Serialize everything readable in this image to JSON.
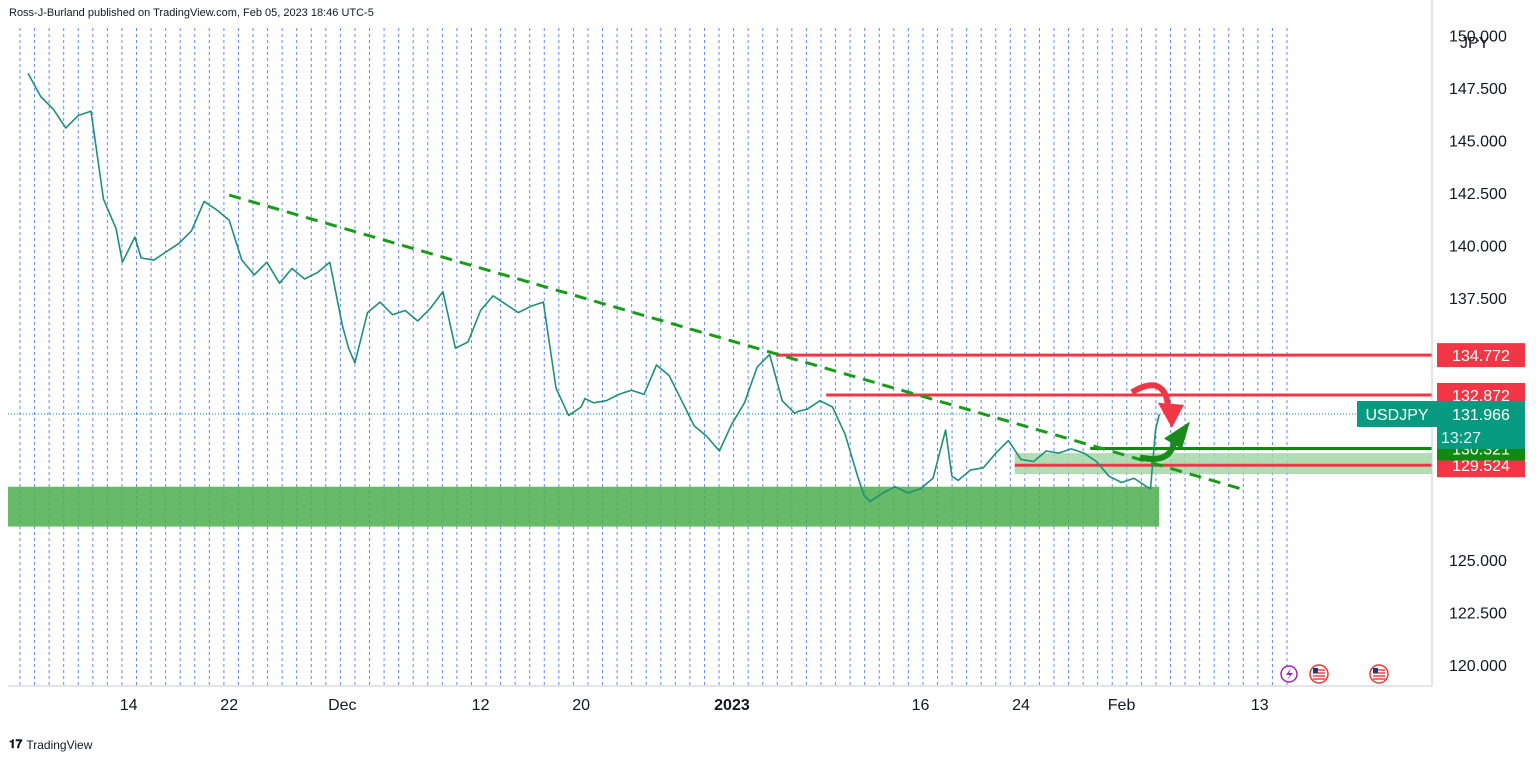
{
  "header": {
    "publisher": "Ross-J-Burland published on TradingView.com, Feb 05, 2023 18:46 UTC-5"
  },
  "footer": {
    "brand": "TradingView"
  },
  "chart_data": {
    "type": "line",
    "symbol": "USDJPY",
    "currency": "JPY",
    "countdown": "13:27",
    "grid": "vertical-dotted",
    "ylim": [
      119.0,
      151.7
    ],
    "xlim": [
      -1.6,
      111.7
    ],
    "y_ticks": [
      "150.000",
      "147.500",
      "145.000",
      "142.500",
      "140.000",
      "137.500",
      "125.000",
      "122.500",
      "120.000"
    ],
    "y_tick_values": [
      150.0,
      147.5,
      145.0,
      142.5,
      140.0,
      137.5,
      125.0,
      122.5,
      120.0
    ],
    "x_ticks": [
      {
        "label": "14",
        "x": 8,
        "bold": false
      },
      {
        "label": "22",
        "x": 16,
        "bold": false
      },
      {
        "label": "Dec",
        "x": 25,
        "bold": false
      },
      {
        "label": "12",
        "x": 36,
        "bold": false
      },
      {
        "label": "20",
        "x": 44,
        "bold": false
      },
      {
        "label": "2023",
        "x": 56,
        "bold": true
      },
      {
        "label": "16",
        "x": 71,
        "bold": false
      },
      {
        "label": "24",
        "x": 79,
        "bold": false
      },
      {
        "label": "Feb",
        "x": 87,
        "bold": false
      },
      {
        "label": "13",
        "x": 98,
        "bold": false
      }
    ],
    "x_note": "x = calendar days since Nov 6, 2022",
    "price_series": {
      "x": [
        0,
        1,
        2,
        3,
        4,
        5,
        6,
        7,
        7.5,
        8,
        8.5,
        9,
        10,
        11,
        12,
        13,
        14,
        15,
        16,
        17,
        18,
        19,
        20,
        21,
        22,
        23,
        24,
        25,
        25.5,
        26,
        27,
        28,
        29,
        30,
        31,
        32,
        33,
        34,
        35,
        36,
        37,
        38,
        39,
        40,
        41,
        42,
        43,
        44,
        44.3,
        45,
        46,
        47,
        48,
        49,
        50,
        51,
        52,
        53,
        54,
        55,
        56,
        57,
        58,
        59,
        60,
        61,
        61.3,
        62,
        63,
        64,
        65,
        66,
        66.5,
        67,
        68,
        69,
        70,
        71,
        72,
        73,
        73.5,
        74,
        75,
        76,
        77,
        78,
        79,
        80,
        81,
        82,
        83,
        84,
        85,
        86,
        87,
        88,
        89,
        89.3,
        89.7,
        90
      ],
      "values": [
        148.2,
        147.1,
        146.5,
        145.6,
        146.2,
        146.4,
        142.2,
        140.8,
        139.2,
        139.8,
        140.4,
        139.4,
        139.3,
        139.7,
        140.1,
        140.7,
        142.1,
        141.7,
        141.2,
        139.3,
        138.6,
        139.2,
        138.2,
        138.9,
        138.4,
        138.7,
        139.2,
        136.2,
        135.1,
        134.4,
        136.8,
        137.3,
        136.7,
        136.9,
        136.4,
        137.0,
        137.8,
        135.1,
        135.4,
        136.9,
        137.6,
        137.2,
        136.8,
        137.1,
        137.3,
        133.2,
        131.9,
        132.3,
        132.7,
        132.5,
        132.6,
        132.9,
        133.1,
        132.9,
        134.3,
        133.8,
        132.6,
        131.4,
        130.9,
        130.2,
        131.5,
        132.5,
        134.2,
        134.8,
        132.6,
        132.0,
        132.1,
        132.2,
        132.6,
        132.3,
        131.0,
        129.0,
        128.1,
        127.8,
        128.2,
        128.5,
        128.2,
        128.4,
        128.9,
        131.2,
        129.0,
        128.8,
        129.3,
        129.4,
        130.1,
        130.7,
        129.8,
        129.7,
        130.2,
        130.1,
        130.3,
        130.1,
        129.7,
        129.0,
        128.7,
        128.9,
        128.5,
        128.4,
        131.2,
        131.96
      ]
    },
    "trendline": {
      "style": "dashed",
      "color": "#1a9b1a",
      "points": [
        [
          16,
          142.4
        ],
        [
          96.5,
          128.4
        ]
      ]
    },
    "resistance_lines": [
      {
        "from": 59.5,
        "to": 111.7,
        "value": 134.772,
        "label": "134.772"
      },
      {
        "from": 63.5,
        "to": 111.7,
        "value": 132.872,
        "label": "132.872"
      },
      {
        "from": 78.5,
        "to": 111.7,
        "value": 129.524,
        "label": "129.524"
      }
    ],
    "support_lines": [
      {
        "from": 84.5,
        "to": 111.7,
        "value": 130.321,
        "label": "130.321"
      }
    ],
    "zones": [
      {
        "x1": -1.6,
        "x2": 90,
        "y1": 126.6,
        "y2": 128.5,
        "color": "#4cae4c"
      },
      {
        "x1": 78.5,
        "x2": 111.7,
        "y1": 129.1,
        "y2": 130.1,
        "color": "#a5d6a7"
      }
    ],
    "last_price": {
      "value": 131.966,
      "label": "131.966"
    },
    "colors": {
      "resistance": "#f23645",
      "support": "#0f8a0f",
      "ticker": "#089981",
      "trend": "#1a9b1a",
      "grid": "#2962ff"
    }
  }
}
